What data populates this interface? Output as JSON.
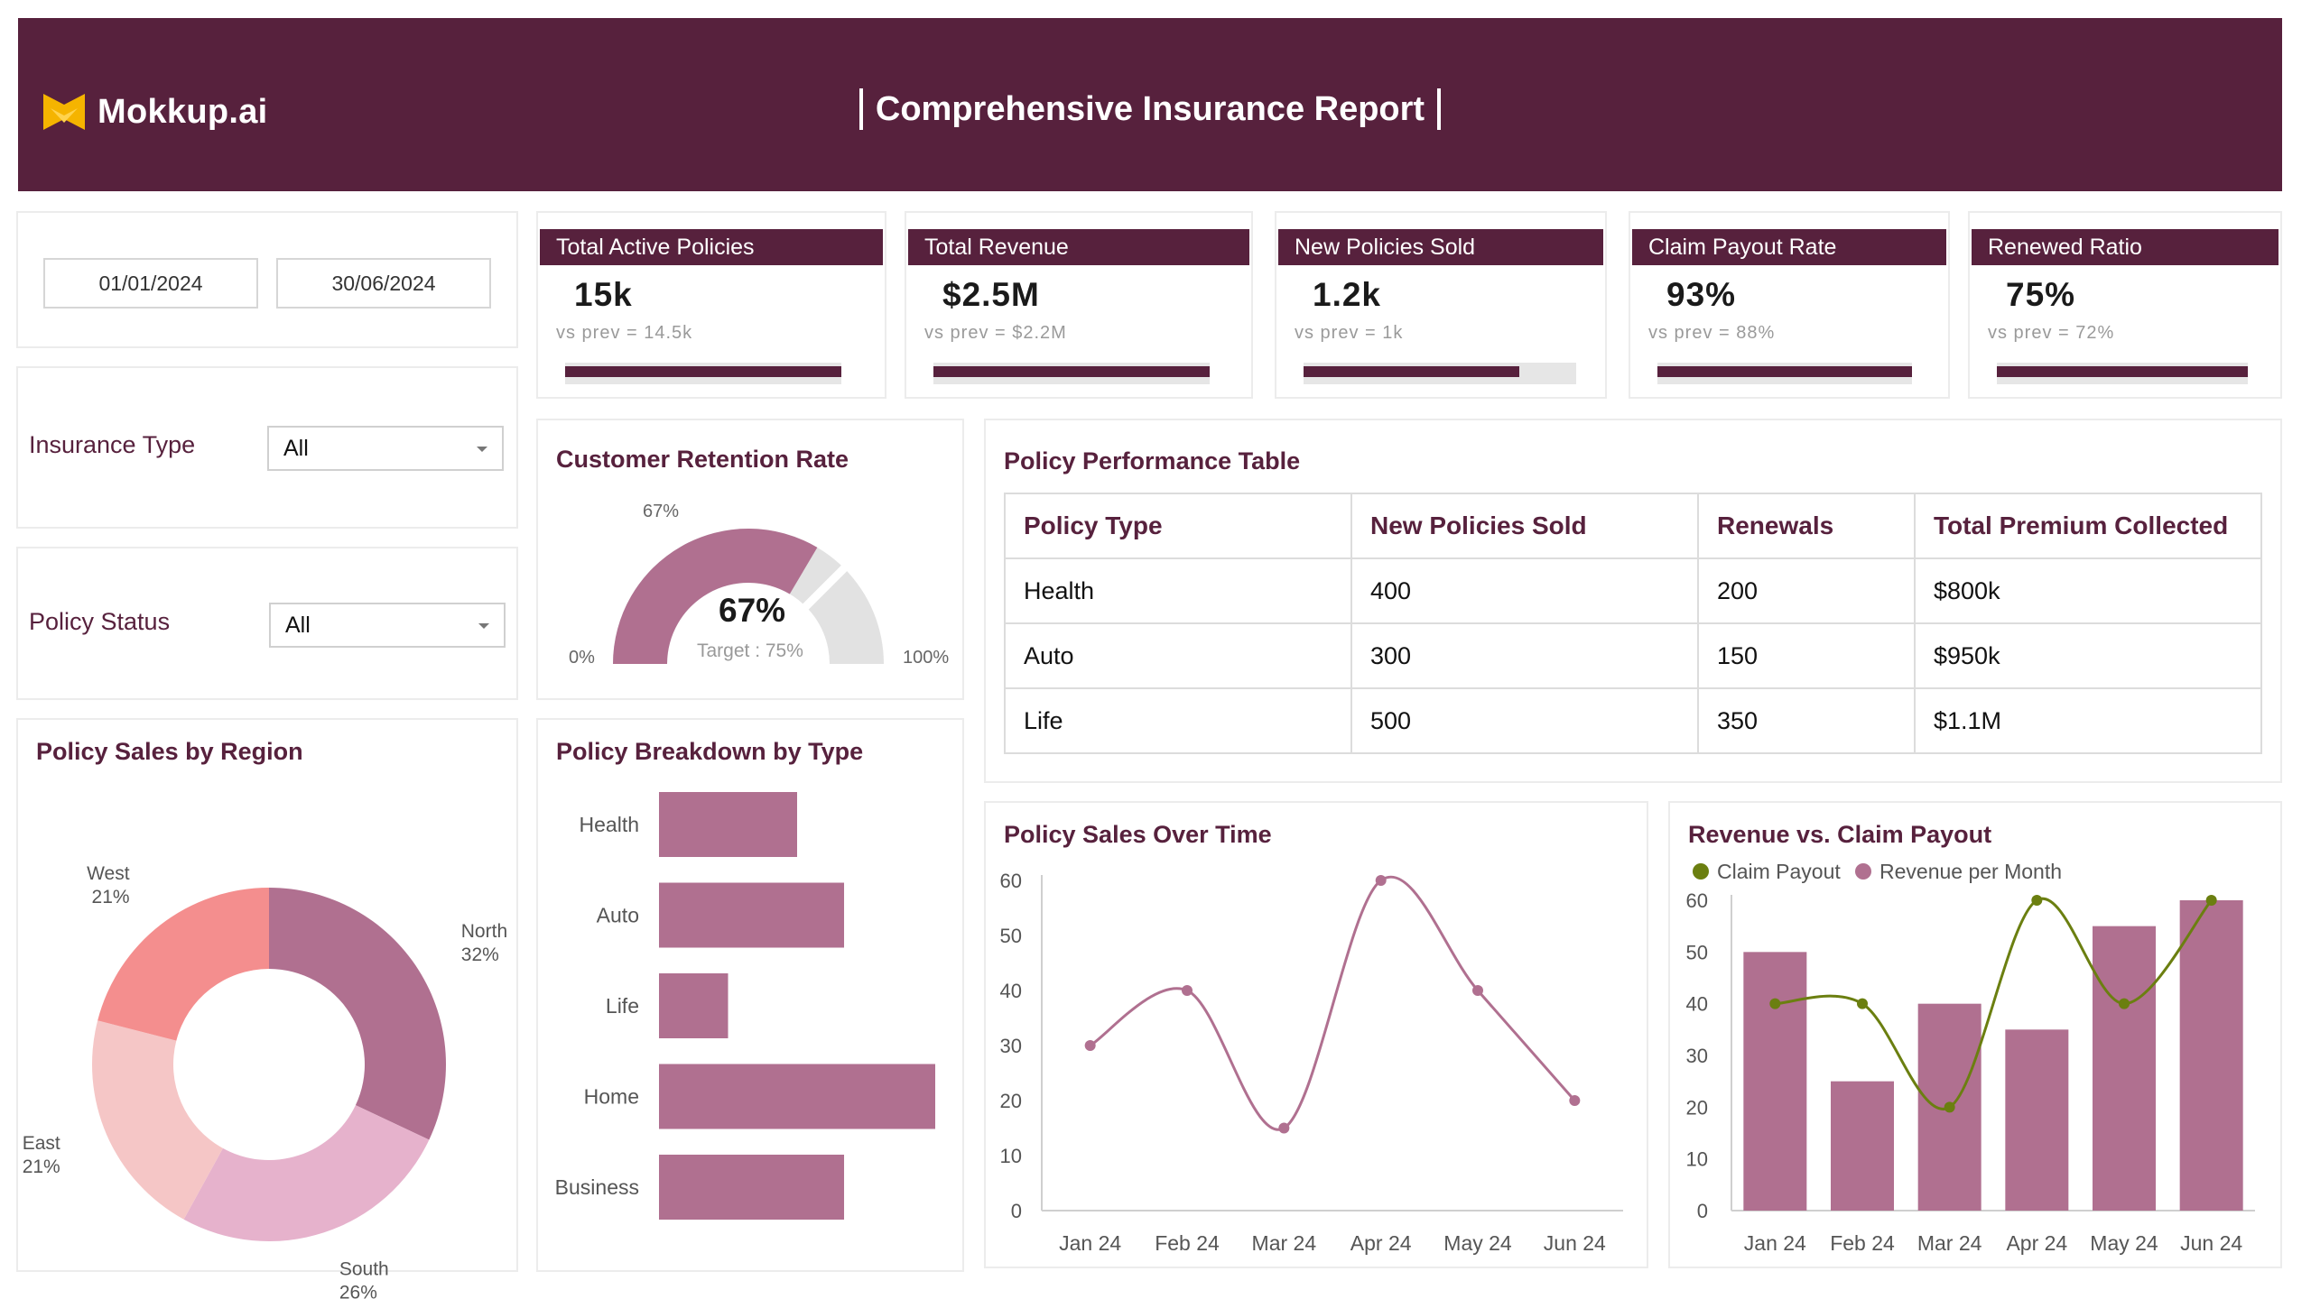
{
  "header": {
    "logo_text": "Mokkup.ai",
    "title": "Comprehensive Insurance Report"
  },
  "filters": {
    "start_date": "01/01/2024",
    "end_date": "30/06/2024",
    "insurance_type_label": "Insurance Type",
    "insurance_type_value": "All",
    "policy_status_label": "Policy Status",
    "policy_status_value": "All"
  },
  "kpis": [
    {
      "title": "Total Active Policies",
      "value": "15k",
      "prev": "vs prev = 14.5k",
      "progress": 1.0
    },
    {
      "title": "Total Revenue",
      "value": "$2.5M",
      "prev": "vs prev = $2.2M",
      "progress": 1.0
    },
    {
      "title": "New Policies Sold",
      "value": "1.2k",
      "prev": "vs prev = 1k",
      "progress": 0.79
    },
    {
      "title": "Claim Payout Rate",
      "value": "93%",
      "prev": "vs prev = 88%",
      "progress": 1.0
    },
    {
      "title": "Renewed Ratio",
      "value": "75%",
      "prev": "vs prev = 72%",
      "progress": 1.0
    }
  ],
  "retention": {
    "title": "Customer Retention Rate",
    "value_label": "67%",
    "target_label": "Target : 75%",
    "min_label": "0%",
    "max_label": "100%",
    "top_label": "67%",
    "value": 67,
    "target": 75
  },
  "performance_table": {
    "title": "Policy Performance Table",
    "headers": [
      "Policy Type",
      "New Policies Sold",
      "Renewals",
      "Total Premium Collected"
    ],
    "rows": [
      [
        "Health",
        "400",
        "200",
        "$800k"
      ],
      [
        "Auto",
        "300",
        "150",
        "$950k"
      ],
      [
        "Life",
        "500",
        "350",
        "$1.1M"
      ]
    ]
  },
  "region": {
    "title": "Policy Sales by Region"
  },
  "breakdown": {
    "title": "Policy Breakdown by Type"
  },
  "sales_time": {
    "title": "Policy Sales Over Time"
  },
  "revenue_claim": {
    "title": "Revenue vs. Claim Payout"
  },
  "colors": {
    "brand": "#57213d",
    "bar": "#b07090",
    "line": "#b07090",
    "claim_line": "#6b7f10",
    "donut_north": "#b07090",
    "donut_south": "#e6b2cc",
    "donut_east": "#f5c6c6",
    "donut_west": "#f48e8e"
  },
  "chart_data": [
    {
      "type": "pie",
      "title": "Policy Sales by Region",
      "categories": [
        "North",
        "South",
        "East",
        "West"
      ],
      "values": [
        32,
        26,
        21,
        21
      ],
      "labels": [
        "32%",
        "26%",
        "21%",
        "21%"
      ]
    },
    {
      "type": "bar",
      "title": "Policy Breakdown by Type",
      "orientation": "horizontal",
      "categories": [
        "Health",
        "Auto",
        "Life",
        "Home",
        "Business"
      ],
      "values": [
        50,
        67,
        25,
        100,
        67
      ]
    },
    {
      "type": "line",
      "title": "Policy Sales Over Time",
      "x": [
        "Jan 24",
        "Feb 24",
        "Mar 24",
        "Apr 24",
        "May 24",
        "Jun 24"
      ],
      "values": [
        30,
        40,
        15,
        60,
        40,
        20
      ],
      "ylim": [
        0,
        60
      ],
      "yticks": [
        0,
        10,
        20,
        30,
        40,
        50,
        60
      ]
    },
    {
      "type": "bar",
      "title": "Revenue vs. Claim Payout",
      "x": [
        "Jan 24",
        "Feb 24",
        "Mar 24",
        "Apr 24",
        "May 24",
        "Jun 24"
      ],
      "series": [
        {
          "name": "Revenue per Month",
          "type": "bar",
          "values": [
            50,
            25,
            40,
            35,
            55,
            60
          ]
        },
        {
          "name": "Claim Payout",
          "type": "line",
          "values": [
            40,
            40,
            20,
            60,
            40,
            60
          ]
        }
      ],
      "ylim": [
        0,
        60
      ],
      "yticks": [
        0,
        10,
        20,
        30,
        40,
        50,
        60
      ],
      "legend": "top-left"
    }
  ]
}
